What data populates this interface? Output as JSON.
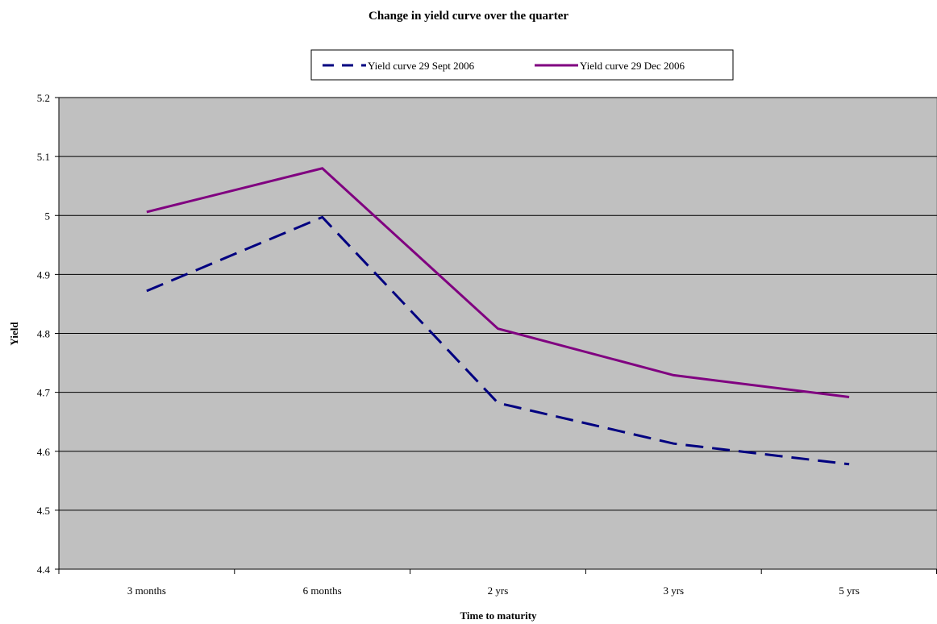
{
  "chart_data": {
    "type": "line",
    "title": "Change in yield curve over the quarter",
    "xlabel": "Time to maturity",
    "ylabel": "Yield",
    "categories": [
      "3 months",
      "6 months",
      "2 yrs",
      "3 yrs",
      "5 yrs"
    ],
    "ylim": [
      4.4,
      5.2
    ],
    "yticks": [
      "4.4",
      "4.5",
      "4.6",
      "4.7",
      "4.8",
      "4.9",
      "5",
      "5.1",
      "5.2"
    ],
    "grid": true,
    "legend_position": "top",
    "plot_background": "#c0c0c0",
    "series": [
      {
        "name": "Yield curve 29 Sept 2006",
        "values": [
          4.872,
          4.997,
          4.682,
          4.613,
          4.578
        ],
        "color": "#000080",
        "dash": "dashed"
      },
      {
        "name": "Yield curve 29 Dec 2006",
        "values": [
          5.006,
          5.08,
          4.808,
          4.729,
          4.692
        ],
        "color": "#800080",
        "dash": "solid"
      }
    ]
  }
}
